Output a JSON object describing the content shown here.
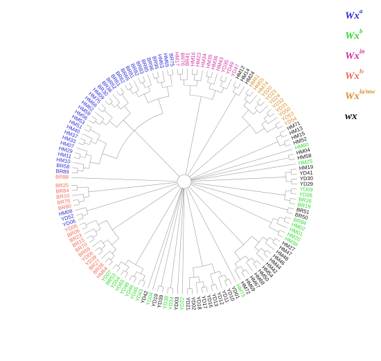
{
  "colors": {
    "Wxa": "#2b2bd6",
    "Wxb": "#2edc2e",
    "Wxin": "#d1329f",
    "Wxlv": "#f06a55",
    "Wxla/mw": "#d98e2a",
    "wx": "#111111"
  },
  "legend": [
    {
      "base": "Wx",
      "sup": "a",
      "group": "Wxa"
    },
    {
      "base": "Wx",
      "sup": "b",
      "group": "Wxb"
    },
    {
      "base": "Wx",
      "sup": "in",
      "group": "Wxin"
    },
    {
      "base": "Wx",
      "sup": "lv",
      "group": "Wxlv"
    },
    {
      "base": "Wx",
      "sup": "la/mw",
      "group": "Wxla/mw"
    },
    {
      "base": "wx",
      "sup": "",
      "group": "wx"
    }
  ],
  "tree": {
    "leaves": [
      {
        "label": "BR88",
        "group": "Wxlv"
      },
      {
        "label": "BR89",
        "group": "Wxa"
      },
      {
        "label": "BR58",
        "group": "Wxa"
      },
      {
        "label": "HM10",
        "group": "Wxa"
      },
      {
        "label": "HM11",
        "group": "Wxa"
      },
      {
        "label": "HM29",
        "group": "Wxa"
      },
      {
        "label": "HM07",
        "group": "Wxa"
      },
      {
        "label": "HM33",
        "group": "Wxa"
      },
      {
        "label": "HM37",
        "group": "Wxa"
      },
      {
        "label": "HM40",
        "group": "Wxa"
      },
      {
        "label": "HM51",
        "group": "Wxa"
      },
      {
        "label": "HM53",
        "group": "Wxa"
      },
      {
        "label": "HM56",
        "group": "Wxa"
      },
      {
        "label": "HM59",
        "group": "Wxa"
      },
      {
        "label": "HM62",
        "group": "Wxa"
      },
      {
        "label": "HM66",
        "group": "Wxa"
      },
      {
        "label": "HM75",
        "group": "Wxa"
      },
      {
        "label": "HM09",
        "group": "Wxa"
      },
      {
        "label": "BR30",
        "group": "Wxa"
      },
      {
        "label": "BR36",
        "group": "Wxa"
      },
      {
        "label": "BR52",
        "group": "Wxa"
      },
      {
        "label": "BR61",
        "group": "Wxa"
      },
      {
        "label": "BR62",
        "group": "Wxa"
      },
      {
        "label": "BR65",
        "group": "Wxa"
      },
      {
        "label": "BR81",
        "group": "Wxa"
      },
      {
        "label": "BR82",
        "group": "Wxa"
      },
      {
        "label": "BR83",
        "group": "Wxa"
      },
      {
        "label": "BR85",
        "group": "Wxa"
      },
      {
        "label": "BR96",
        "group": "Wxa"
      },
      {
        "label": "BR95",
        "group": "Wxa"
      },
      {
        "label": "HM63",
        "group": "Wxa"
      },
      {
        "label": "HM65",
        "group": "Wxa"
      },
      {
        "label": "BR75",
        "group": "Wxa"
      },
      {
        "label": "HM17",
        "group": "Wxin"
      },
      {
        "label": "BR76",
        "group": "Wxin"
      },
      {
        "label": "BR41",
        "group": "Wxin"
      },
      {
        "label": "HM16",
        "group": "Wxin"
      },
      {
        "label": "HM23",
        "group": "Wxin"
      },
      {
        "label": "HM34",
        "group": "Wxin"
      },
      {
        "label": "HM35",
        "group": "Wxin"
      },
      {
        "label": "HM36",
        "group": "Wxin"
      },
      {
        "label": "HM43",
        "group": "Wxin"
      },
      {
        "label": "YD35",
        "group": "Wxin"
      },
      {
        "label": "YD49",
        "group": "Wxin"
      },
      {
        "label": "YD47",
        "group": "Wxin"
      },
      {
        "label": "HM12",
        "group": "wx"
      },
      {
        "label": "HM14",
        "group": "wx"
      },
      {
        "label": "HM24",
        "group": "wx"
      },
      {
        "label": "HM61",
        "group": "Wxla/mw"
      },
      {
        "label": "HM55",
        "group": "Wxla/mw"
      },
      {
        "label": "HM74",
        "group": "Wxla/mw"
      },
      {
        "label": "YD20",
        "group": "Wxla/mw"
      },
      {
        "label": "YD23",
        "group": "Wxla/mw"
      },
      {
        "label": "YD24",
        "group": "Wxla/mw"
      },
      {
        "label": "YD32",
        "group": "Wxla/mw"
      },
      {
        "label": "YD31",
        "group": "Wxla/mw"
      },
      {
        "label": "YD50",
        "group": "Wxla/mw"
      },
      {
        "label": "YD53",
        "group": "Wxla/mw"
      },
      {
        "label": "YD54",
        "group": "Wxla/mw"
      },
      {
        "label": "HM71",
        "group": "wx"
      },
      {
        "label": "HM13",
        "group": "wx"
      },
      {
        "label": "HM15",
        "group": "wx"
      },
      {
        "label": "HM52",
        "group": "wx"
      },
      {
        "label": "HM60",
        "group": "Wxb"
      },
      {
        "label": "HM04",
        "group": "wx"
      },
      {
        "label": "HM58",
        "group": "wx"
      },
      {
        "label": "HM25",
        "group": "Wxb"
      },
      {
        "label": "HM19",
        "group": "wx"
      },
      {
        "label": "YD41",
        "group": "wx"
      },
      {
        "label": "YD30",
        "group": "wx"
      },
      {
        "label": "YD29",
        "group": "wx"
      },
      {
        "label": "YD09",
        "group": "Wxb"
      },
      {
        "label": "YD08",
        "group": "Wxb"
      },
      {
        "label": "BR26",
        "group": "Wxb"
      },
      {
        "label": "BR19",
        "group": "Wxb"
      },
      {
        "label": "BR51",
        "group": "wx"
      },
      {
        "label": "BR50",
        "group": "wx"
      },
      {
        "label": "BR94",
        "group": "Wxb"
      },
      {
        "label": "HM02",
        "group": "Wxb"
      },
      {
        "label": "HM01",
        "group": "Wxb"
      },
      {
        "label": "HM20",
        "group": "Wxb"
      },
      {
        "label": "HM39",
        "group": "Wxb"
      },
      {
        "label": "HM27",
        "group": "wx"
      },
      {
        "label": "HM47",
        "group": "wx"
      },
      {
        "label": "HM48",
        "group": "wx"
      },
      {
        "label": "HM46",
        "group": "wx"
      },
      {
        "label": "HM44",
        "group": "wx"
      },
      {
        "label": "HM42",
        "group": "wx"
      },
      {
        "label": "HM54",
        "group": "wx"
      },
      {
        "label": "HM50",
        "group": "wx"
      },
      {
        "label": "HM68",
        "group": "wx"
      },
      {
        "label": "HM67",
        "group": "wx"
      },
      {
        "label": "HM69",
        "group": "wx"
      },
      {
        "label": "HM72",
        "group": "wx"
      },
      {
        "label": "HM73",
        "group": "Wxb"
      },
      {
        "label": "YD01",
        "group": "wx"
      },
      {
        "label": "YD10",
        "group": "wx"
      },
      {
        "label": "YD11",
        "group": "wx"
      },
      {
        "label": "YD12",
        "group": "wx"
      },
      {
        "label": "YD13",
        "group": "wx"
      },
      {
        "label": "YD16",
        "group": "wx"
      },
      {
        "label": "YD17",
        "group": "wx"
      },
      {
        "label": "YD18",
        "group": "wx"
      },
      {
        "label": "YD02",
        "group": "wx"
      },
      {
        "label": "YD21",
        "group": "wx"
      },
      {
        "label": "YD22",
        "group": "Wxb"
      },
      {
        "label": "YD03",
        "group": "wx"
      },
      {
        "label": "YD34",
        "group": "Wxb"
      },
      {
        "label": "YD38",
        "group": "Wxb"
      },
      {
        "label": "YD39",
        "group": "wx"
      },
      {
        "label": "YD19",
        "group": "wx"
      },
      {
        "label": "YD04",
        "group": "Wxb"
      },
      {
        "label": "YD42",
        "group": "wx"
      },
      {
        "label": "YD43",
        "group": "Wxb"
      },
      {
        "label": "YD45",
        "group": "Wxb"
      },
      {
        "label": "YD46",
        "group": "Wxb"
      },
      {
        "label": "YD48",
        "group": "Wxb"
      },
      {
        "label": "YD65",
        "group": "Wxb"
      },
      {
        "label": "YD54",
        "group": "Wxb"
      },
      {
        "label": "BR53",
        "group": "Wxb"
      },
      {
        "label": "YD07",
        "group": "Wxb"
      },
      {
        "label": "HM64",
        "group": "Wxlv"
      },
      {
        "label": "BR28",
        "group": "Wxlv"
      },
      {
        "label": "BR27",
        "group": "Wxlv"
      },
      {
        "label": "YD39",
        "group": "Wxlv"
      },
      {
        "label": "YD05",
        "group": "Wxlv"
      },
      {
        "label": "BR59",
        "group": "Wxlv"
      },
      {
        "label": "BR70",
        "group": "Wxlv"
      },
      {
        "label": "BR15",
        "group": "Wxlv"
      },
      {
        "label": "BR23",
        "group": "Wxlv"
      },
      {
        "label": "BR06",
        "group": "Wxlv"
      },
      {
        "label": "YD06",
        "group": "Wxlv"
      },
      {
        "label": "YD06",
        "group": "Wxa"
      },
      {
        "label": "YD52",
        "group": "Wxa"
      },
      {
        "label": "HM08",
        "group": "Wxa"
      },
      {
        "label": "BR80",
        "group": "Wxlv"
      },
      {
        "label": "BR78",
        "group": "Wxlv"
      },
      {
        "label": "BR10",
        "group": "Wxlv"
      },
      {
        "label": "BR84",
        "group": "Wxlv"
      },
      {
        "label": "BR25",
        "group": "Wxlv"
      }
    ]
  }
}
